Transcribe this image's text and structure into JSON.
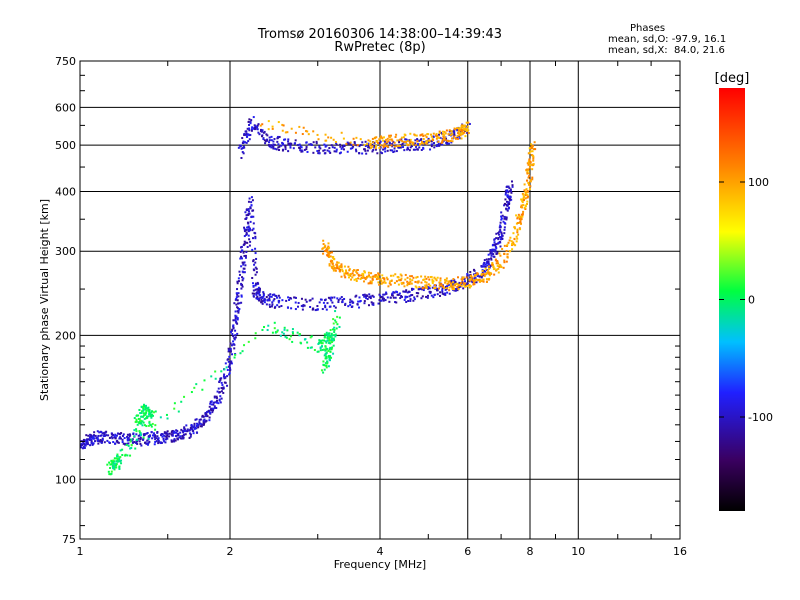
{
  "header": {
    "title_line1": "Tromsø 20160306 14:38:00–14:39:43",
    "title_line2": "RwPretec (8p)"
  },
  "stats": {
    "heading": "Phases",
    "line_o": "mean, sd,O: -97.9, 16.1",
    "line_x": "mean, sd,X:  84.0, 21.6"
  },
  "colorbar": {
    "label": "[deg]",
    "ticks": [
      "100",
      "0",
      "-100"
    ]
  },
  "chart_data": {
    "type": "scatter",
    "title": "Tromsø 20160306 14:38:00–14:39:43",
    "subtitle": "RwPretec (8p)",
    "xlabel": "Frequency [MHz]",
    "ylabel": "Stationary phase Virtual Height [km]",
    "x_scale": "log",
    "y_scale": "log",
    "xlim": [
      1,
      16
    ],
    "ylim": [
      75,
      750
    ],
    "x_ticks": [
      1,
      2,
      4,
      6,
      8,
      10,
      16
    ],
    "y_ticks": [
      75,
      100,
      200,
      300,
      400,
      500,
      600,
      750
    ],
    "grid": true,
    "colorbar": {
      "label": "[deg]",
      "range": [
        -180,
        180
      ],
      "ticks": [
        100,
        0,
        -100
      ]
    },
    "series": [
      {
        "color_phase": -100,
        "points": [
          [
            1.0,
            118
          ],
          [
            1.05,
            121
          ],
          [
            1.1,
            123
          ],
          [
            1.2,
            122
          ],
          [
            1.3,
            121
          ],
          [
            1.4,
            122
          ],
          [
            1.5,
            123
          ],
          [
            1.6,
            124
          ],
          [
            1.7,
            128
          ],
          [
            1.8,
            135
          ],
          [
            1.9,
            150
          ],
          [
            2.0,
            175
          ],
          [
            2.05,
            210
          ],
          [
            2.1,
            260
          ],
          [
            2.15,
            320
          ],
          [
            2.2,
            380
          ],
          [
            2.25,
            250
          ],
          [
            2.3,
            240
          ],
          [
            2.5,
            235
          ],
          [
            3.0,
            232
          ],
          [
            3.5,
            235
          ],
          [
            4.0,
            238
          ],
          [
            4.5,
            242
          ],
          [
            5.0,
            246
          ],
          [
            5.5,
            252
          ],
          [
            6.0,
            260
          ],
          [
            6.5,
            275
          ],
          [
            6.8,
            300
          ],
          [
            7.0,
            330
          ],
          [
            7.2,
            380
          ],
          [
            7.3,
            410
          ]
        ]
      },
      {
        "color_phase": -100,
        "points": [
          [
            2.1,
            480
          ],
          [
            2.2,
            560
          ],
          [
            2.4,
            510
          ],
          [
            2.6,
            500
          ],
          [
            3.0,
            495
          ],
          [
            3.5,
            493
          ],
          [
            4.0,
            495
          ],
          [
            4.5,
            500
          ],
          [
            5.0,
            505
          ],
          [
            5.5,
            520
          ],
          [
            6.0,
            540
          ]
        ]
      },
      {
        "color_phase": 100,
        "points": [
          [
            3.1,
            310
          ],
          [
            3.2,
            285
          ],
          [
            3.4,
            272
          ],
          [
            3.7,
            265
          ],
          [
            4.0,
            262
          ],
          [
            4.5,
            260
          ],
          [
            5.0,
            258
          ],
          [
            5.5,
            256
          ],
          [
            6.0,
            258
          ],
          [
            6.5,
            265
          ],
          [
            7.0,
            285
          ],
          [
            7.5,
            330
          ],
          [
            7.8,
            380
          ],
          [
            8.0,
            440
          ],
          [
            8.1,
            500
          ]
        ]
      },
      {
        "color_phase": 100,
        "points": [
          [
            2.3,
            560
          ],
          [
            3.8,
            505
          ],
          [
            4.2,
            510
          ],
          [
            4.8,
            515
          ],
          [
            5.3,
            520
          ],
          [
            5.8,
            530
          ],
          [
            6.0,
            545
          ]
        ]
      },
      {
        "color_phase": 0,
        "points": [
          [
            1.3,
            130
          ],
          [
            1.35,
            140
          ],
          [
            1.4,
            135
          ],
          [
            1.15,
            105
          ],
          [
            1.2,
            110
          ],
          [
            2.4,
            210
          ],
          [
            3.0,
            190
          ],
          [
            3.2,
            200
          ],
          [
            3.1,
            170
          ],
          [
            3.3,
            220
          ]
        ]
      }
    ]
  }
}
